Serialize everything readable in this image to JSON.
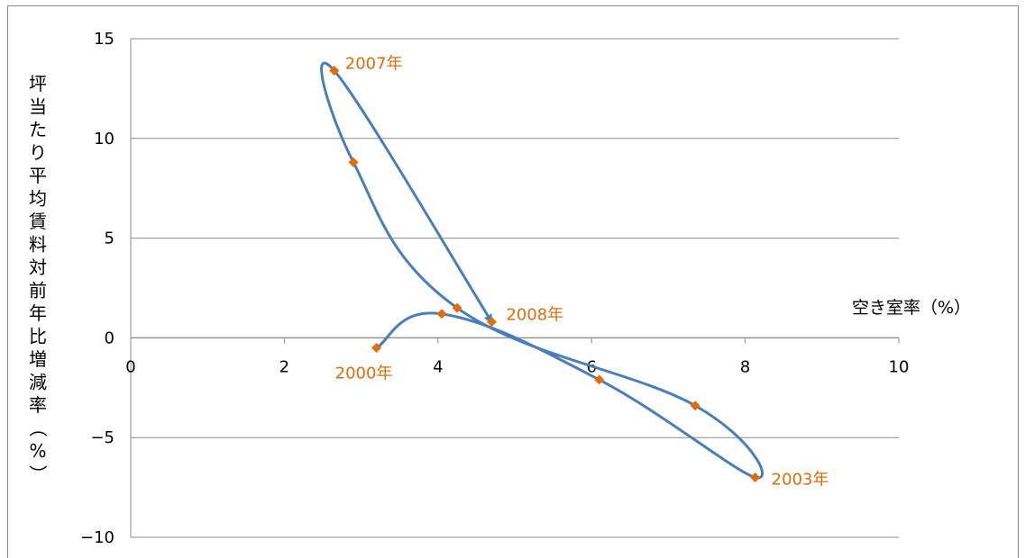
{
  "chart_data": {
    "type": "scatter",
    "xlabel": "空き室率（%）",
    "ylabel": "坪当たり平均賃料対前年比増減率（%）",
    "xlim": [
      0,
      10
    ],
    "ylim": [
      -10,
      15
    ],
    "x_ticks": [
      "0",
      "2",
      "4",
      "6",
      "8",
      "10"
    ],
    "y_ticks": [
      "15",
      "10",
      "5",
      "0",
      "−5",
      "−10"
    ],
    "grid": "horizontal",
    "series": [
      {
        "points": [
          {
            "x": 3.2,
            "y": -0.5
          },
          {
            "x": 4.05,
            "y": 1.2
          },
          {
            "x": 6.1,
            "y": -2.1
          },
          {
            "x": 8.13,
            "y": -7.0
          },
          {
            "x": 7.35,
            "y": -3.4
          },
          {
            "x": 4.25,
            "y": 1.5
          },
          {
            "x": 2.9,
            "y": 8.8
          },
          {
            "x": 2.65,
            "y": 13.4
          },
          {
            "x": 4.7,
            "y": 0.8
          }
        ]
      }
    ],
    "annotations": [
      {
        "text": "2000年",
        "x": 3.2,
        "y": -0.5
      },
      {
        "text": "2003年",
        "x": 8.13,
        "y": -7.0
      },
      {
        "text": "2007年",
        "x": 2.65,
        "y": 13.4
      },
      {
        "text": "2008年",
        "x": 4.7,
        "y": 0.8
      }
    ],
    "colors": {
      "line": "#4a7ebb",
      "marker": "#e36c09",
      "grid": "#8c8c8c",
      "annotation": "#e06c0e"
    }
  }
}
